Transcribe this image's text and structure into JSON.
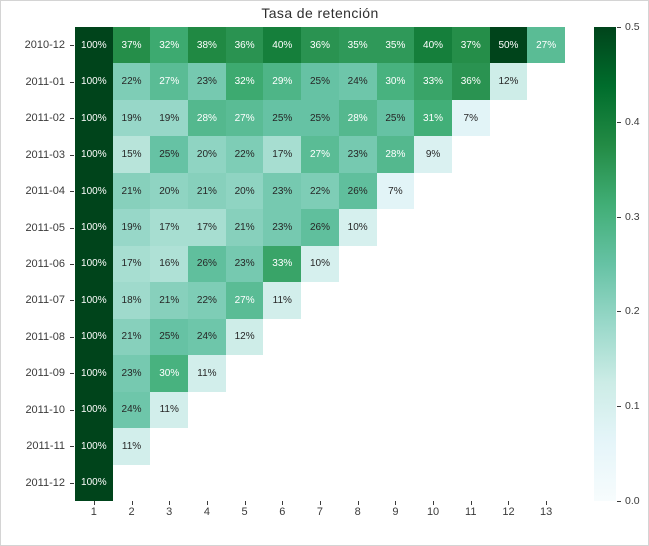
{
  "figure": {
    "background": "#ffffff",
    "border_color": "#d4d4d4"
  },
  "chart_data": {
    "type": "heatmap",
    "title": "Tasa de retención",
    "x_tick_labels": [
      "1",
      "2",
      "3",
      "4",
      "5",
      "6",
      "7",
      "8",
      "9",
      "10",
      "11",
      "12",
      "13"
    ],
    "y_tick_labels": [
      "2010-12",
      "2011-01",
      "2011-02",
      "2011-03",
      "2011-04",
      "2011-05",
      "2011-06",
      "2011-07",
      "2011-08",
      "2011-09",
      "2011-10",
      "2011-11",
      "2011-12"
    ],
    "values_pct": [
      [
        100,
        37,
        32,
        38,
        36,
        40,
        36,
        35,
        35,
        40,
        37,
        50,
        27
      ],
      [
        100,
        22,
        27,
        23,
        32,
        29,
        25,
        24,
        30,
        33,
        36,
        12
      ],
      [
        100,
        19,
        19,
        28,
        27,
        25,
        25,
        28,
        25,
        31,
        7
      ],
      [
        100,
        15,
        25,
        20,
        22,
        17,
        27,
        23,
        28,
        9
      ],
      [
        100,
        21,
        20,
        21,
        20,
        23,
        22,
        26,
        7
      ],
      [
        100,
        19,
        17,
        17,
        21,
        23,
        26,
        10
      ],
      [
        100,
        17,
        16,
        26,
        23,
        33,
        10
      ],
      [
        100,
        18,
        21,
        22,
        27,
        11
      ],
      [
        100,
        21,
        25,
        24,
        12
      ],
      [
        100,
        23,
        30,
        11
      ],
      [
        100,
        24,
        11
      ],
      [
        100,
        11
      ],
      [
        100
      ]
    ],
    "annotation_suffix": "%",
    "vmin": 0.0,
    "vmax": 0.5,
    "grid": false,
    "legend": "colorbar-right",
    "colorbar": {
      "tick_values": [
        0.0,
        0.1,
        0.2,
        0.3,
        0.4,
        0.5
      ],
      "tick_labels": [
        "0.0",
        "0.1",
        "0.2",
        "0.3",
        "0.4",
        "0.5"
      ]
    },
    "colormap": {
      "name": "BuGn",
      "anchors": [
        {
          "pos": 0.0,
          "color": "#f7fcfd"
        },
        {
          "pos": 0.125,
          "color": "#e5f5f9"
        },
        {
          "pos": 0.25,
          "color": "#ccece6"
        },
        {
          "pos": 0.375,
          "color": "#99d8c9"
        },
        {
          "pos": 0.5,
          "color": "#66c2a4"
        },
        {
          "pos": 0.625,
          "color": "#41ae76"
        },
        {
          "pos": 0.75,
          "color": "#238b45"
        },
        {
          "pos": 0.875,
          "color": "#006d2c"
        },
        {
          "pos": 1.0,
          "color": "#00441b"
        }
      ]
    },
    "text_colors": {
      "dark": "#262626",
      "light": "#ffffff",
      "luminance_threshold": 0.408
    },
    "axis_text_color": "#3b3b3b"
  }
}
